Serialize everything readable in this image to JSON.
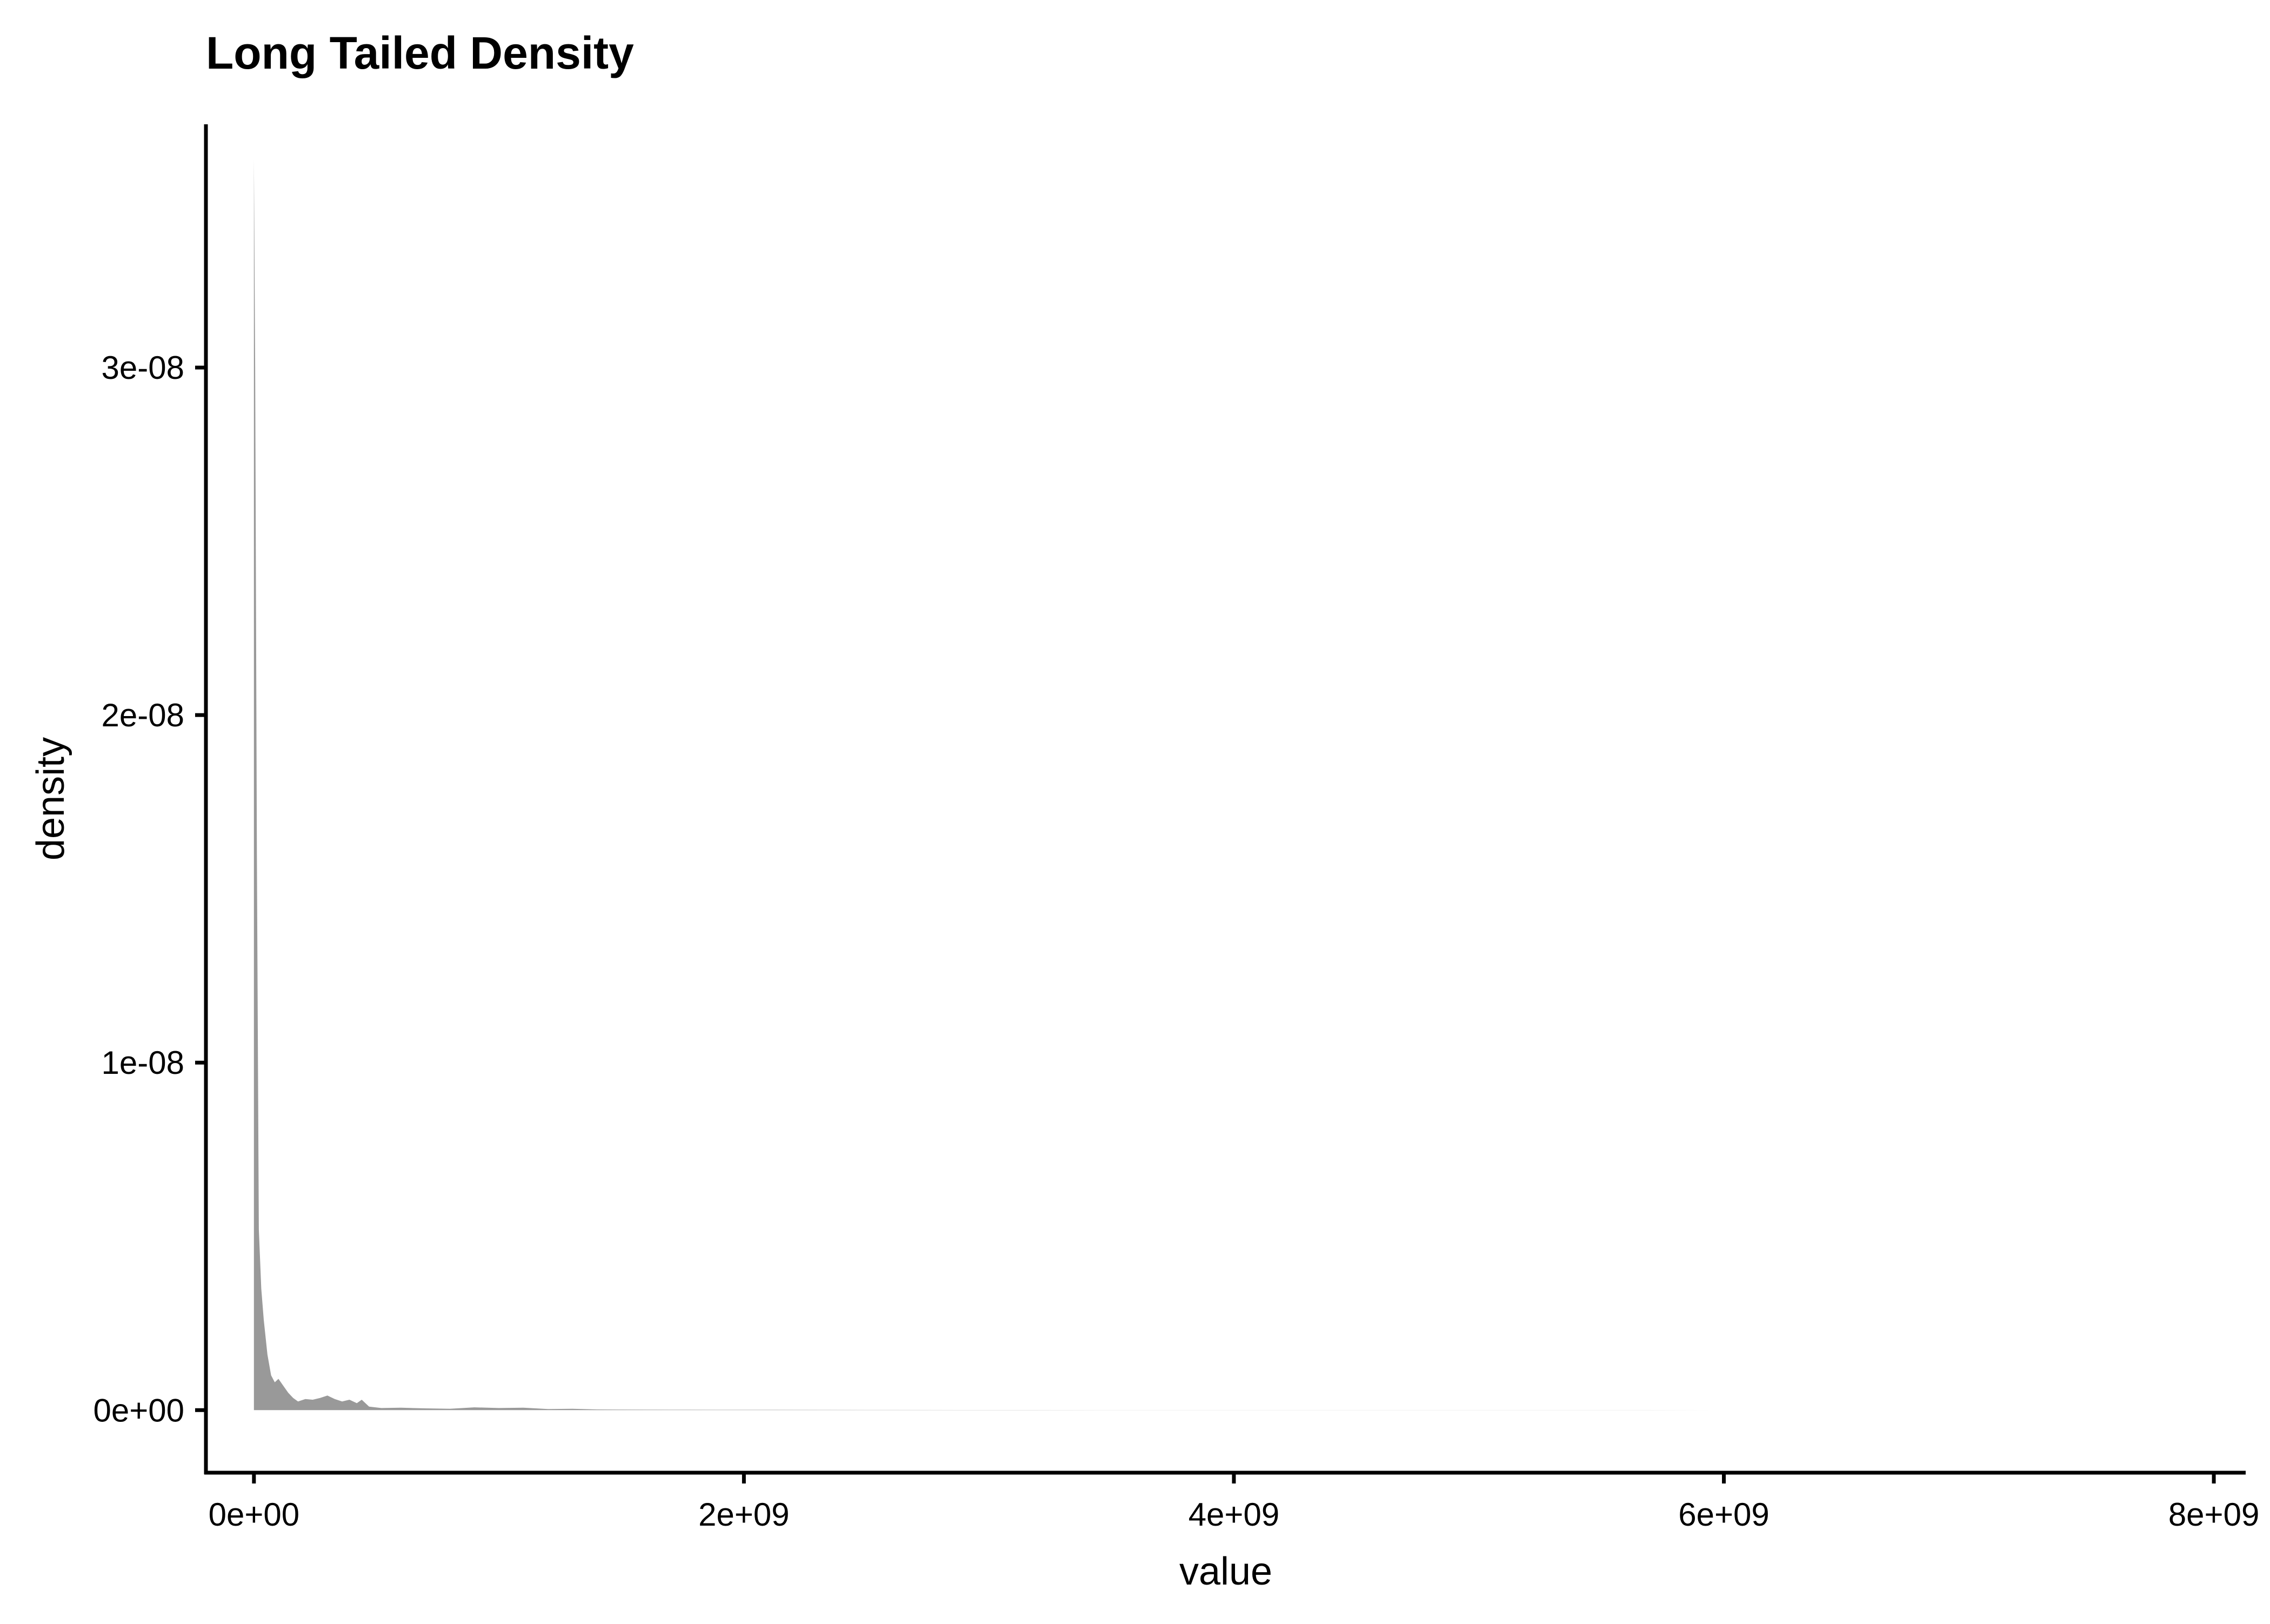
{
  "chart_data": {
    "type": "area",
    "title": "Long Tailed Density",
    "xlabel": "value",
    "ylabel": "density",
    "xlim": [
      -196000000,
      8130000000
    ],
    "ylim": [
      -1.8e-09,
      3.7e-08
    ],
    "x_ticks": [
      {
        "value": 0,
        "label": "0e+00"
      },
      {
        "value": 2000000000,
        "label": "2e+09"
      },
      {
        "value": 4000000000,
        "label": "4e+09"
      },
      {
        "value": 6000000000,
        "label": "6e+09"
      },
      {
        "value": 8000000000,
        "label": "8e+09"
      }
    ],
    "y_ticks": [
      {
        "value": 0,
        "label": "0e+00"
      },
      {
        "value": 1e-08,
        "label": "1e-08"
      },
      {
        "value": 2e-08,
        "label": "2e-08"
      },
      {
        "value": 3e-08,
        "label": "3e-08"
      }
    ],
    "grid": false,
    "legend": "none",
    "fill_color": "#999999",
    "series": [
      {
        "x": [
          0,
          5000000,
          12000000,
          20000000,
          30000000,
          40000000,
          55000000,
          70000000,
          85000000,
          100000000,
          120000000,
          140000000,
          160000000,
          180000000,
          210000000,
          240000000,
          270000000,
          300000000,
          330000000,
          360000000,
          390000000,
          420000000,
          440000000,
          470000000,
          520000000,
          600000000,
          700000000,
          800000000,
          900000000,
          1000000000,
          1100000000,
          1200000000,
          1300000000,
          1400000000,
          1500000000,
          1700000000,
          1900000000,
          2100000000,
          2300000000,
          2500000000,
          3000000000,
          3500000000,
          4000000000,
          5000000000,
          6000000000,
          7000000000,
          7800000000
        ],
        "y": [
          3.6e-08,
          3e-08,
          1.6e-08,
          5.2e-09,
          3.5e-09,
          2.6e-09,
          1.6e-09,
          1e-09,
          8e-10,
          9e-10,
          7e-10,
          5e-10,
          3.5e-10,
          2.5e-10,
          3.2e-10,
          3e-10,
          3.5e-10,
          4.2e-10,
          3.2e-10,
          2.5e-10,
          3e-10,
          2e-10,
          3e-10,
          1e-10,
          6e-11,
          7e-11,
          5e-11,
          4e-11,
          8e-11,
          6e-11,
          7e-11,
          3e-11,
          4e-11,
          2e-11,
          1.5e-11,
          1.2e-11,
          1e-11,
          1e-11,
          8e-12,
          5e-12,
          4e-12,
          3e-12,
          2e-12,
          2e-12,
          1e-12,
          1e-12,
          0
        ]
      }
    ]
  }
}
